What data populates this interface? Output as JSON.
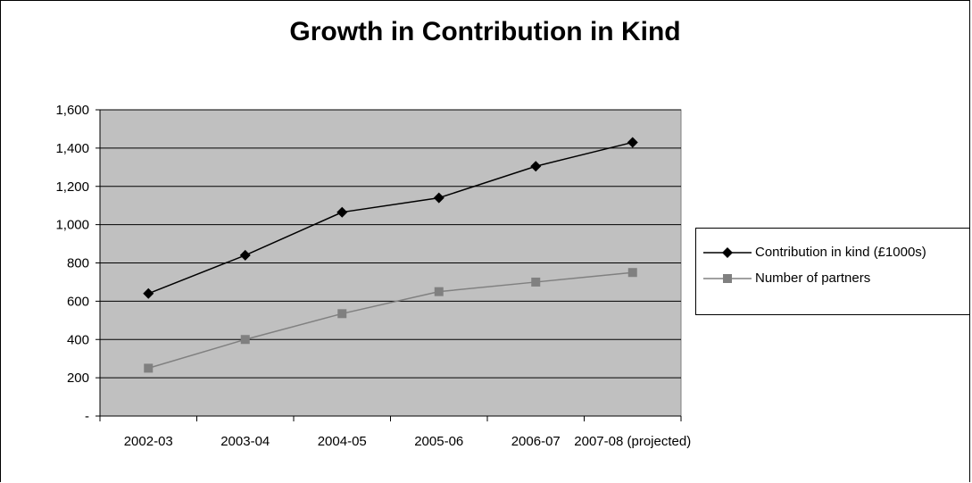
{
  "chart_data": {
    "type": "line",
    "title": "Growth in Contribution in Kind",
    "categories": [
      "2002-03",
      "2003-04",
      "2004-05",
      "2005-06",
      "2006-07",
      "2007-08 (projected)"
    ],
    "yticks": [
      "-",
      "200",
      "400",
      "600",
      "800",
      "1,000",
      "1,200",
      "1,400",
      "1,600"
    ],
    "ylim": [
      0,
      1600
    ],
    "ystep": 200,
    "grid": true,
    "legend_position": "right",
    "plot_background": "#c0c0c0",
    "series": [
      {
        "name": "Contribution in kind (£1000s)",
        "values": [
          640,
          840,
          1065,
          1140,
          1305,
          1430
        ],
        "color": "#000000",
        "marker": "diamond"
      },
      {
        "name": "Number of partners",
        "values": [
          250,
          400,
          535,
          650,
          700,
          750
        ],
        "color": "#808080",
        "marker": "square"
      }
    ]
  }
}
